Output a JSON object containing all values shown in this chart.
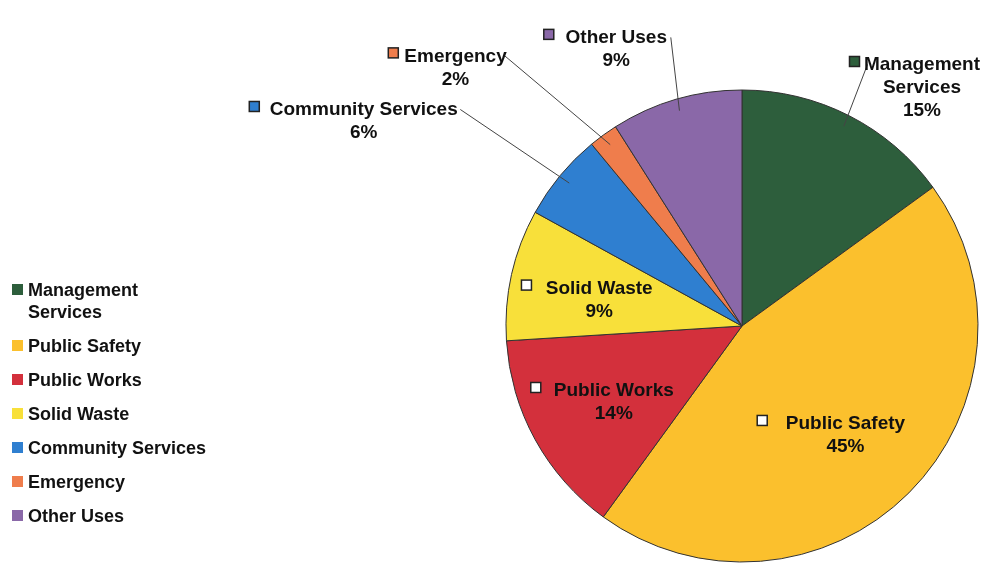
{
  "chart_data": {
    "type": "pie",
    "categories": [
      "Management Services",
      "Public Safety",
      "Public Works",
      "Solid Waste",
      "Community Services",
      "Emergency",
      "Other Uses"
    ],
    "values": [
      15,
      45,
      14,
      9,
      6,
      2,
      9
    ],
    "colors": [
      "#2d5e3c",
      "#fbc02d",
      "#d3303c",
      "#f8e03a",
      "#2f7fd0",
      "#ef7d4c",
      "#8a68a8"
    ],
    "value_labels": [
      "15%",
      "45%",
      "14%",
      "9%",
      "6%",
      "2%",
      "9%"
    ],
    "legend": "left"
  }
}
